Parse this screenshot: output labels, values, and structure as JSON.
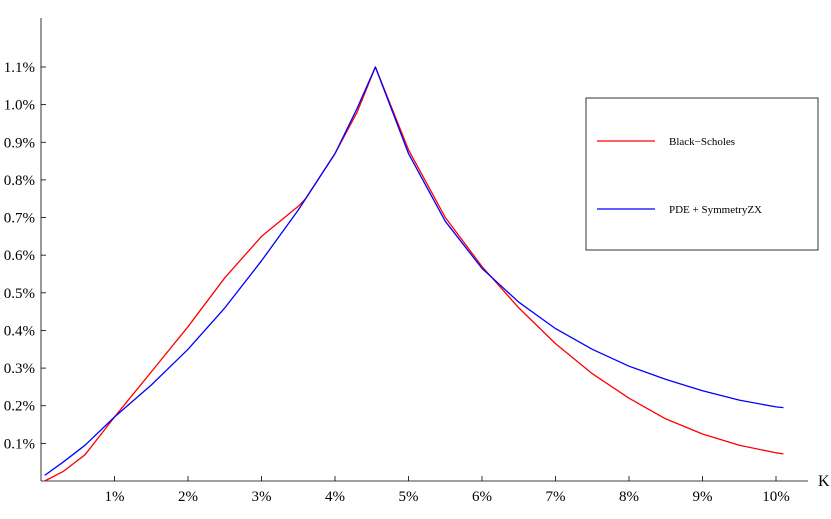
{
  "chart_data": {
    "type": "line",
    "title": "",
    "xlabel": "K",
    "ylabel": "",
    "xlim": [
      0,
      10.2
    ],
    "ylim": [
      0,
      1.1
    ],
    "xticks": [
      {
        "value": 1,
        "label": "1%"
      },
      {
        "value": 2,
        "label": "2%"
      },
      {
        "value": 3,
        "label": "3%"
      },
      {
        "value": 4,
        "label": "4%"
      },
      {
        "value": 5,
        "label": "5%"
      },
      {
        "value": 6,
        "label": "6%"
      },
      {
        "value": 7,
        "label": "7%"
      },
      {
        "value": 8,
        "label": "8%"
      },
      {
        "value": 9,
        "label": "9%"
      },
      {
        "value": 10,
        "label": "10%"
      }
    ],
    "yticks": [
      {
        "value": 0.1,
        "label": "0.1%"
      },
      {
        "value": 0.2,
        "label": "0.2%"
      },
      {
        "value": 0.3,
        "label": "0.3%"
      },
      {
        "value": 0.4,
        "label": "0.4%"
      },
      {
        "value": 0.5,
        "label": "0.5%"
      },
      {
        "value": 0.6,
        "label": "0.6%"
      },
      {
        "value": 0.7,
        "label": "0.7%"
      },
      {
        "value": 0.8,
        "label": "0.8%"
      },
      {
        "value": 0.9,
        "label": "0.9%"
      },
      {
        "value": 1.0,
        "label": "1.0%"
      },
      {
        "value": 1.1,
        "label": "1.1%"
      }
    ],
    "grid": false,
    "legend_position": "right",
    "series": [
      {
        "name": "Black−Scholes",
        "color": "#ff0000",
        "x": [
          0.05,
          0.3,
          0.6,
          1.0,
          1.5,
          2.0,
          2.5,
          3.0,
          3.5,
          3.6,
          4.0,
          4.3,
          4.55,
          5.0,
          5.5,
          6.0,
          6.5,
          7.0,
          7.5,
          8.0,
          8.5,
          9.0,
          9.5,
          10.0,
          10.1
        ],
        "y": [
          0.0,
          0.025,
          0.07,
          0.17,
          0.29,
          0.41,
          0.54,
          0.65,
          0.73,
          0.75,
          0.87,
          0.98,
          1.1,
          0.88,
          0.7,
          0.57,
          0.46,
          0.365,
          0.285,
          0.22,
          0.165,
          0.125,
          0.095,
          0.075,
          0.072
        ]
      },
      {
        "name": "PDE + SymmetryZX",
        "color": "#0000ff",
        "x": [
          0.05,
          0.3,
          0.6,
          1.0,
          1.5,
          2.0,
          2.5,
          3.0,
          3.5,
          4.0,
          4.3,
          4.55,
          5.0,
          5.5,
          6.0,
          6.5,
          7.0,
          7.5,
          8.0,
          8.5,
          9.0,
          9.5,
          10.0,
          10.1
        ],
        "y": [
          0.015,
          0.05,
          0.095,
          0.17,
          0.255,
          0.35,
          0.46,
          0.585,
          0.72,
          0.87,
          0.99,
          1.1,
          0.87,
          0.69,
          0.565,
          0.475,
          0.405,
          0.35,
          0.305,
          0.27,
          0.24,
          0.215,
          0.197,
          0.195
        ]
      }
    ]
  }
}
